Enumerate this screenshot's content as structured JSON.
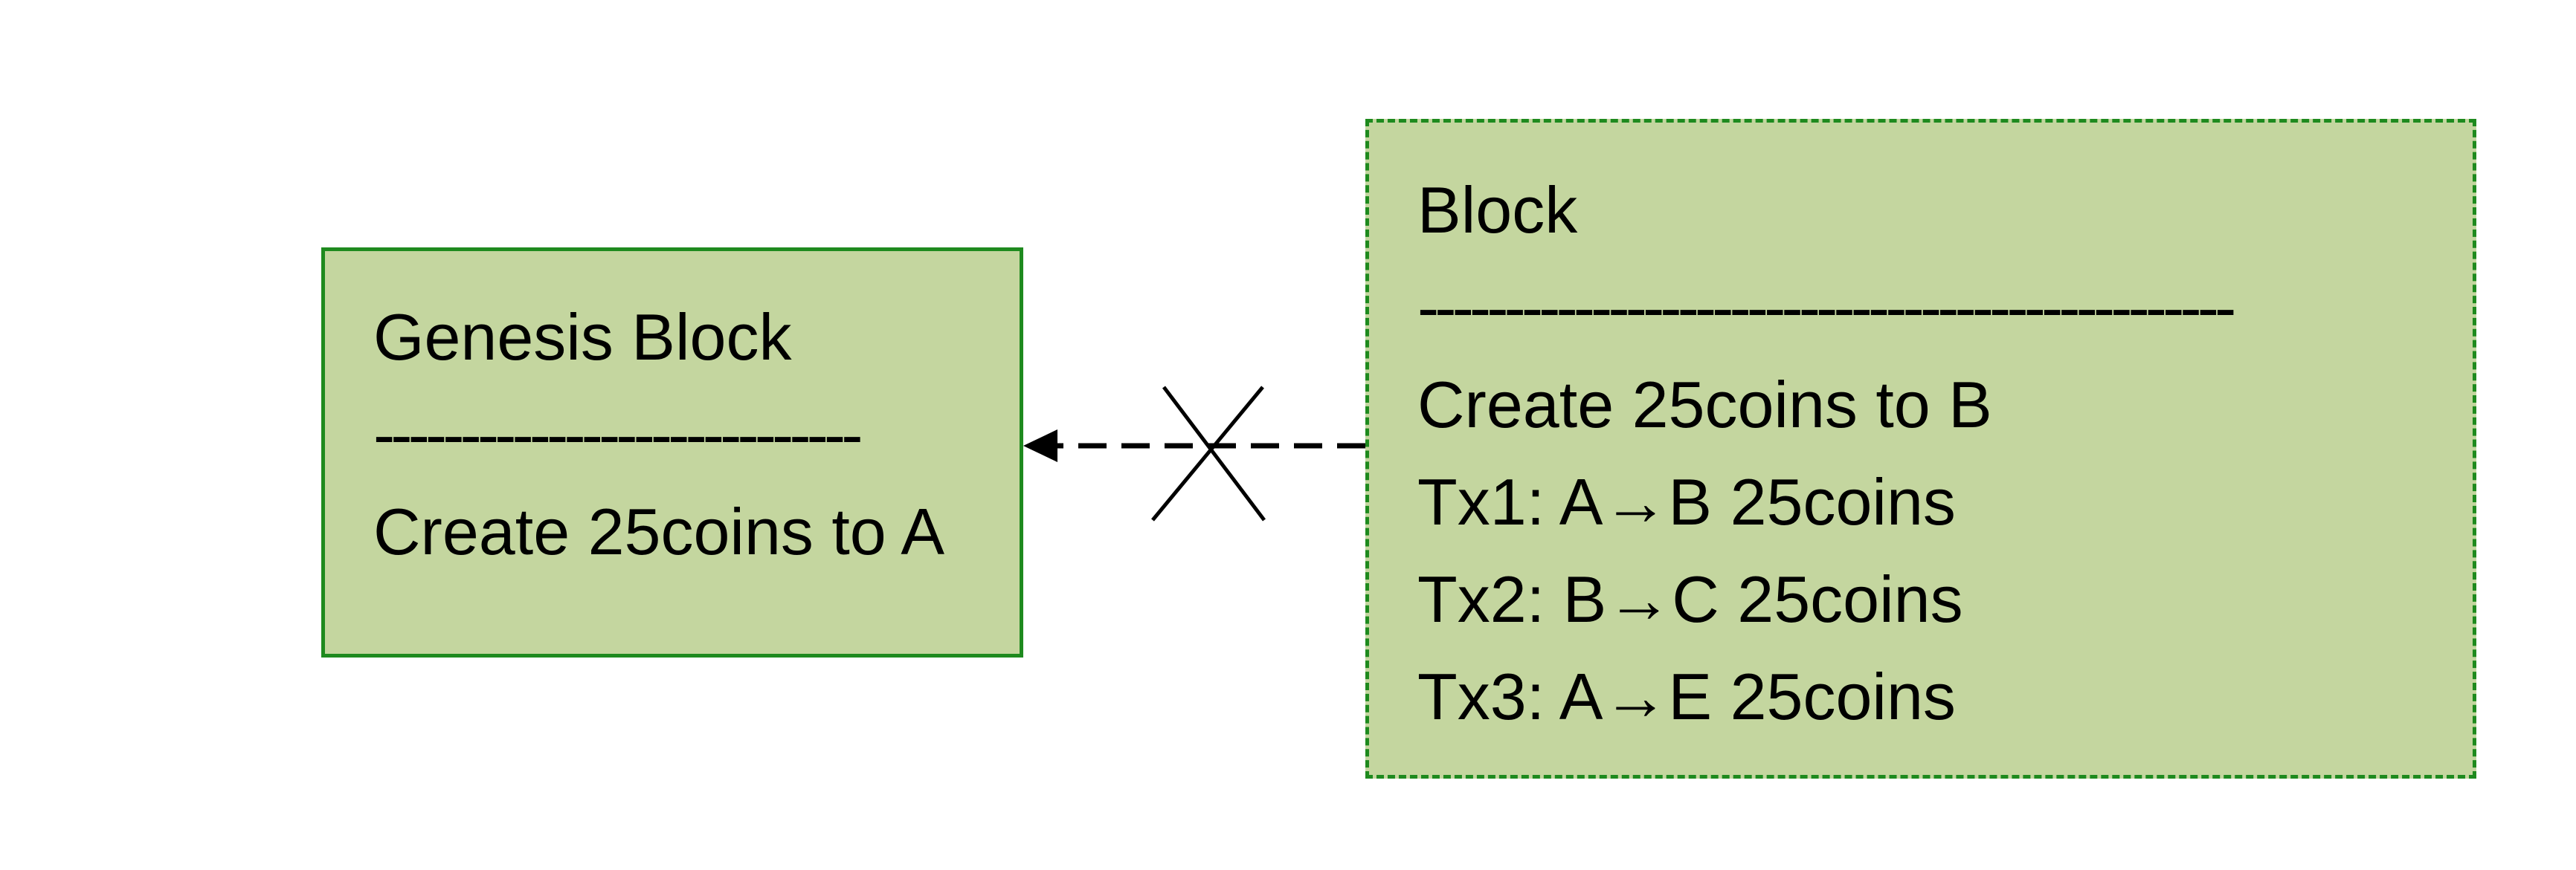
{
  "genesis_block": {
    "title": "Genesis Block",
    "separator": "----------------------------",
    "transactions": [
      "Create 25coins to A"
    ]
  },
  "block": {
    "title": "Block",
    "separator": "-----------------------------------------------",
    "transactions": [
      "Create 25coins to B",
      "Tx1: A→B 25coins",
      "Tx2: B→C 25coins",
      "Tx3: A→E 25coins"
    ]
  },
  "link": {
    "style": "dashed",
    "direction": "from Block to Genesis Block",
    "crossed_out": true
  },
  "colors": {
    "block_fill": "#c4d69f",
    "block_border": "#1e8a1e",
    "text": "#000000",
    "arrow": "#000000"
  }
}
